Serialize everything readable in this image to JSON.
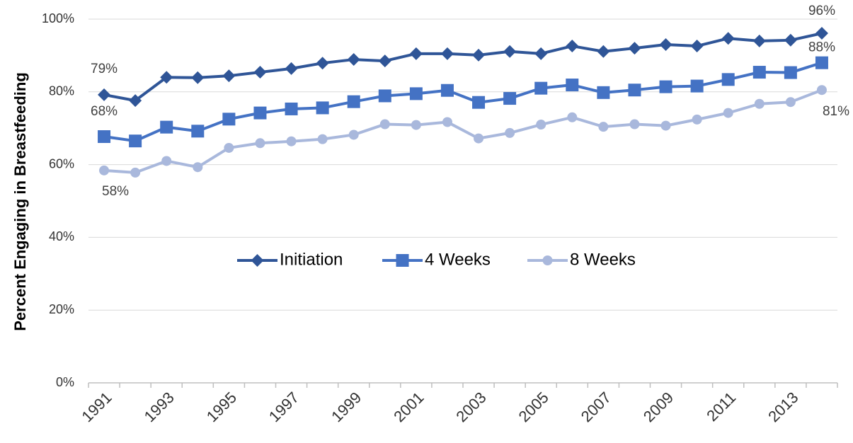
{
  "chart_data": {
    "type": "line",
    "categories": [
      "1991",
      null,
      "1993",
      null,
      "1995",
      null,
      "1997",
      null,
      "1999",
      null,
      "2001",
      null,
      "2003",
      null,
      "2005",
      null,
      "2007",
      null,
      "2009",
      null,
      "2011",
      null,
      "2013",
      null
    ],
    "series": [
      {
        "name": "Initiation",
        "color": "#2f5597",
        "marker": "diamond",
        "values": [
          79.2,
          77.6,
          84.0,
          83.9,
          84.4,
          85.4,
          86.4,
          87.9,
          88.9,
          88.5,
          90.5,
          90.5,
          90.1,
          91.1,
          90.5,
          92.6,
          91.1,
          92.0,
          93.0,
          92.6,
          94.7,
          94.0,
          94.2,
          96.1
        ],
        "value_labels": [
          "79%",
          null,
          null,
          null,
          null,
          null,
          null,
          null,
          null,
          null,
          null,
          null,
          null,
          null,
          null,
          null,
          null,
          null,
          null,
          null,
          null,
          null,
          null,
          "96%"
        ]
      },
      {
        "name": "4 Weeks",
        "color": "#4472c4",
        "marker": "square",
        "values": [
          67.7,
          66.5,
          70.3,
          69.2,
          72.5,
          74.2,
          75.3,
          75.6,
          77.3,
          78.9,
          79.5,
          80.4,
          77.1,
          78.2,
          81.0,
          81.9,
          79.8,
          80.5,
          81.4,
          81.6,
          83.4,
          85.4,
          85.3,
          88.0
        ],
        "value_labels": [
          "68%",
          null,
          null,
          null,
          null,
          null,
          null,
          null,
          null,
          null,
          null,
          null,
          null,
          null,
          null,
          null,
          null,
          null,
          null,
          null,
          null,
          null,
          null,
          "88%"
        ]
      },
      {
        "name": "8 Weeks",
        "color": "#a9b8dc",
        "marker": "circle",
        "values": [
          58.4,
          57.8,
          61.0,
          59.3,
          64.6,
          65.9,
          66.4,
          67.0,
          68.2,
          71.1,
          70.9,
          71.7,
          67.2,
          68.7,
          71.0,
          73.0,
          70.4,
          71.1,
          70.7,
          72.4,
          74.2,
          76.7,
          77.2,
          80.5
        ],
        "value_labels": [
          "58%",
          null,
          null,
          null,
          null,
          null,
          null,
          null,
          null,
          null,
          null,
          null,
          null,
          null,
          null,
          null,
          null,
          null,
          null,
          null,
          null,
          null,
          null,
          "81%"
        ]
      }
    ],
    "ylabel": "Percent Engaging in Breastfeeding",
    "ylim": [
      0,
      100
    ],
    "yticks": [
      {
        "value": 0,
        "label": "0%"
      },
      {
        "value": 20,
        "label": "20%"
      },
      {
        "value": 40,
        "label": "40%"
      },
      {
        "value": 60,
        "label": "60%"
      },
      {
        "value": 80,
        "label": "80%"
      },
      {
        "value": 100,
        "label": "100%"
      }
    ],
    "grid": true,
    "legend": "center"
  }
}
